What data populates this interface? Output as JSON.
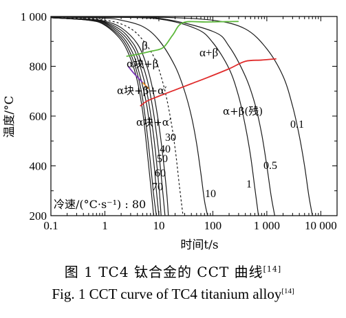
{
  "figure": {
    "caption_cn": "图 1   TC4 钛合金的 CCT 曲线",
    "caption_cn_ref": "[14]",
    "caption_en": "Fig. 1   CCT curve of TC4 titanium alloy",
    "caption_en_ref": "[14]"
  },
  "chart_data": {
    "type": "line",
    "xlabel": "时间t/s",
    "ylabel": "温度/°C",
    "xscale": "log",
    "xlim": [
      0.1,
      20000
    ],
    "ylim": [
      200,
      1000
    ],
    "xticks": [
      0.1,
      1,
      10,
      100,
      1000,
      10000
    ],
    "xtick_labels": [
      "0.1",
      "1",
      "10",
      "100",
      "1 000",
      "10 000"
    ],
    "yticks": [
      200,
      400,
      600,
      800,
      1000
    ],
    "ytick_labels": [
      "200",
      "400",
      "600",
      "800",
      "1 000"
    ],
    "series": [
      {
        "name": "80",
        "style": "solid",
        "x": [
          0.1,
          0.5,
          1,
          2,
          3,
          4,
          5,
          6,
          7,
          8
        ],
        "y": [
          995,
          985,
          965,
          905,
          830,
          740,
          620,
          470,
          330,
          200
        ]
      },
      {
        "name": "70",
        "style": "solid",
        "x": [
          0.1,
          0.5,
          1,
          2,
          3,
          4,
          5,
          6,
          7,
          8,
          9
        ],
        "y": [
          995,
          985,
          968,
          915,
          850,
          770,
          670,
          540,
          410,
          285,
          200
        ]
      },
      {
        "name": "60",
        "style": "solid",
        "x": [
          0.1,
          0.5,
          1,
          2,
          3,
          4,
          6,
          8,
          9,
          10
        ],
        "y": [
          995,
          986,
          972,
          925,
          870,
          800,
          640,
          420,
          300,
          200
        ]
      },
      {
        "name": "50",
        "style": "solid",
        "x": [
          0.1,
          0.5,
          1,
          2,
          3,
          4,
          6,
          8,
          10,
          11
        ],
        "y": [
          995,
          987,
          975,
          935,
          890,
          835,
          695,
          520,
          320,
          200
        ]
      },
      {
        "name": "40",
        "style": "solid",
        "x": [
          0.1,
          0.5,
          1,
          2,
          3,
          4,
          6,
          8,
          10,
          12,
          13
        ],
        "y": [
          995,
          988,
          978,
          945,
          905,
          860,
          750,
          610,
          450,
          280,
          200
        ]
      },
      {
        "name": "30",
        "style": "solid",
        "x": [
          0.1,
          0.5,
          1,
          2,
          4,
          6,
          8,
          10,
          12,
          14,
          15
        ],
        "y": [
          995,
          989,
          981,
          955,
          890,
          800,
          690,
          565,
          430,
          290,
          200
        ]
      },
      {
        "name": "",
        "style": "dashed",
        "x": [
          0.1,
          0.5,
          1,
          2,
          4,
          8,
          12,
          16,
          20,
          24,
          28
        ],
        "y": [
          995,
          991,
          985,
          970,
          930,
          840,
          730,
          605,
          470,
          320,
          200
        ]
      },
      {
        "name": "10",
        "style": "solid",
        "x": [
          0.1,
          1,
          2,
          5,
          10,
          20,
          30,
          40,
          50,
          60,
          70,
          80
        ],
        "y": [
          998,
          993,
          985,
          960,
          905,
          800,
          700,
          600,
          490,
          370,
          260,
          200
        ]
      },
      {
        "name": "1",
        "style": "solid",
        "x": [
          0.1,
          1,
          10,
          50,
          100,
          200,
          300,
          400,
          500,
          600,
          700
        ],
        "y": [
          998,
          997,
          990,
          950,
          895,
          790,
          680,
          560,
          440,
          310,
          200
        ]
      },
      {
        "name": "0.5",
        "style": "solid",
        "x": [
          0.1,
          1,
          10,
          100,
          200,
          400,
          600,
          800,
          1000,
          1200,
          1400
        ],
        "y": [
          998,
          997,
          993,
          940,
          880,
          760,
          650,
          530,
          400,
          280,
          200
        ]
      },
      {
        "name": "0.1",
        "style": "solid",
        "x": [
          0.1,
          1,
          10,
          100,
          400,
          1000,
          2000,
          3000,
          4000,
          5000,
          6000,
          7000
        ],
        "y": [
          998,
          998,
          997,
          985,
          950,
          870,
          760,
          640,
          520,
          400,
          280,
          200
        ]
      }
    ],
    "transformation_lines": [
      {
        "color": "#5cb83a",
        "x": [
          2.5,
          4,
          7,
          12,
          18,
          28,
          80,
          300
        ],
        "y": [
          840,
          848,
          860,
          875,
          925,
          975,
          978,
          980
        ]
      },
      {
        "color": "#e02b2b",
        "x": [
          4.5,
          6,
          10,
          20,
          40,
          80,
          200,
          400,
          800,
          1500
        ],
        "y": [
          640,
          660,
          680,
          705,
          730,
          755,
          790,
          820,
          825,
          830
        ]
      },
      {
        "color": "#7a35b8",
        "x": [
          2.7,
          3.5,
          5
        ],
        "y": [
          800,
          770,
          735
        ]
      },
      {
        "color": "#f08a2a",
        "x": [
          5,
          6.5
        ],
        "y": [
          735,
          710
        ]
      }
    ],
    "cooling_rate_label": "冷速/(°C·s⁻¹) : 80",
    "curve_labels": [
      "70",
      "60",
      "50",
      "40",
      "30",
      "10",
      "1",
      "0.5",
      "0.1"
    ],
    "phase_labels": {
      "beta": "β",
      "alpha_beta": "α+β",
      "alpha_block_beta": "α块+β",
      "alpha_block_beta_alpha_prime": "α块+β+α′",
      "alpha_block_alpha_prime": "α块+α′",
      "alpha_beta_residual": "α+β(残)"
    }
  }
}
